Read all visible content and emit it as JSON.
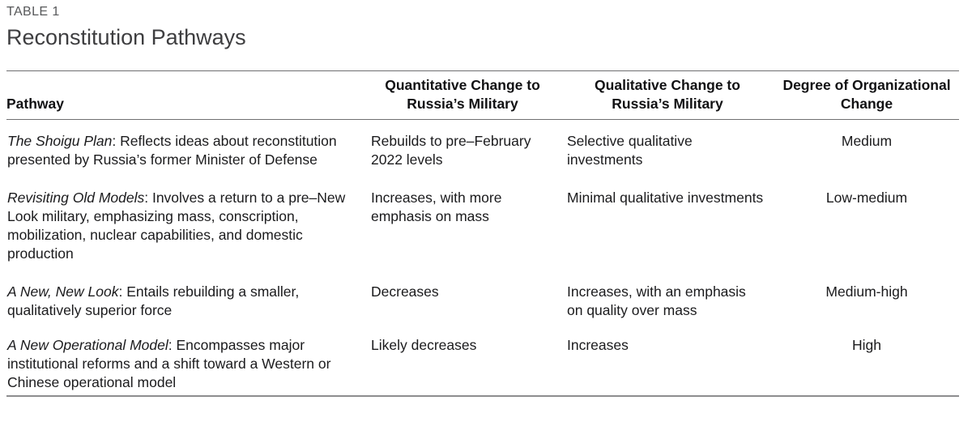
{
  "page": {
    "label": "TABLE 1",
    "title": "Reconstitution Pathways"
  },
  "table": {
    "columns": [
      "Pathway",
      "Quantitative Change to Russia’s Military",
      "Qualitative Change to Russia’s Military",
      "Degree of Organizational Change"
    ],
    "rows": [
      {
        "pathway_name": "The Shoigu Plan",
        "pathway_rest": ": Reflects ideas about reconstitution presented by Russia’s former Minister of Defense",
        "quantitative": "Rebuilds to pre–February 2022 levels",
        "qualitative": "Selective qualitative investments",
        "degree": "Medium"
      },
      {
        "pathway_name": "Revisiting Old Models",
        "pathway_rest": ": Involves a return to a pre–New Look military, emphasizing mass, conscription, mobilization, nuclear capabilities, and domestic production",
        "quantitative": "Increases, with more emphasis on mass",
        "qualitative": "Minimal qualitative investments",
        "degree": "Low-medium"
      },
      {
        "pathway_name": "A New, New Look",
        "pathway_rest": ": Entails rebuilding a smaller, qualitatively superior force",
        "quantitative": "Decreases",
        "qualitative": "Increases, with an emphasis on quality over mass",
        "degree": "Medium-high"
      },
      {
        "pathway_name": "A New Operational Model",
        "pathway_rest": ": Encompasses major institutional reforms and a shift toward a Western or Chinese operational model",
        "quantitative": "Likely decreases",
        "qualitative": "Increases",
        "degree": "High"
      }
    ]
  }
}
